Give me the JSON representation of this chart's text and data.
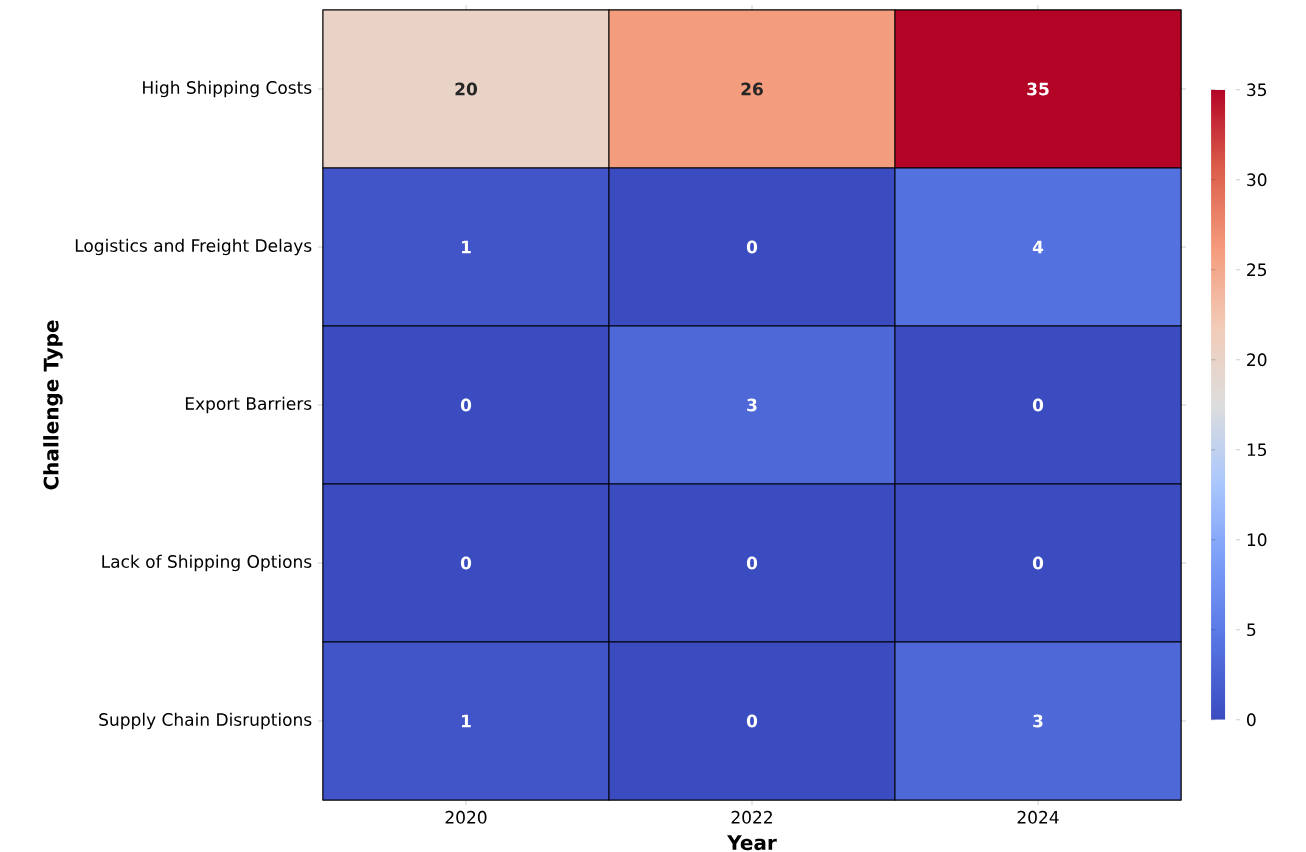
{
  "chart_data": {
    "type": "heatmap",
    "xlabel": "Year",
    "ylabel": "Challenge Type",
    "categories": [
      "2020",
      "2022",
      "2024"
    ],
    "y_categories": [
      "High Shipping Costs",
      "Logistics and Freight Delays",
      "Export Barriers",
      "Lack of Shipping Options",
      "Supply Chain Disruptions"
    ],
    "cells": [
      [
        20,
        26,
        35
      ],
      [
        1,
        0,
        4
      ],
      [
        0,
        3,
        0
      ],
      [
        0,
        0,
        0
      ],
      [
        1,
        0,
        3
      ]
    ],
    "clim": [
      0,
      35
    ],
    "cticks": [
      0,
      5,
      10,
      15,
      20,
      25,
      30,
      35
    ],
    "data_labels": true
  }
}
